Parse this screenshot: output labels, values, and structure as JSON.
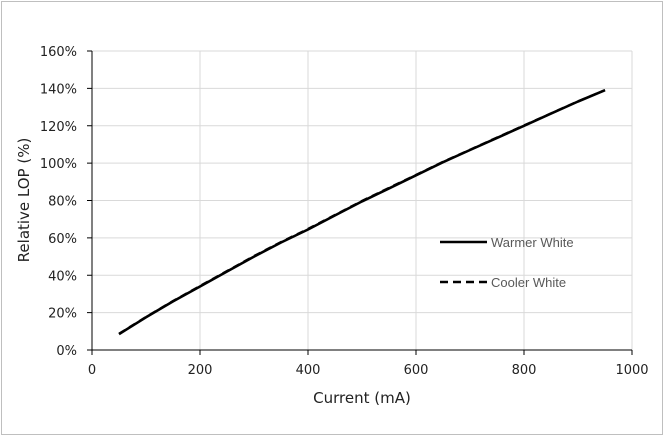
{
  "chart_data": {
    "type": "line",
    "title": "",
    "xlabel": "Current (mA)",
    "ylabel": "Relative LOP (%)",
    "xlim": [
      0,
      1000
    ],
    "ylim": [
      0,
      160
    ],
    "x_ticks": [
      0,
      200,
      400,
      600,
      800,
      1000
    ],
    "y_ticks": [
      0,
      20,
      40,
      60,
      80,
      100,
      120,
      140,
      160
    ],
    "x_tick_labels": [
      "0",
      "200",
      "400",
      "600",
      "800",
      "1000"
    ],
    "y_tick_labels": [
      "0%",
      "20%",
      "40%",
      "60%",
      "80%",
      "100%",
      "120%",
      "140%",
      "160%"
    ],
    "grid": true,
    "legend_position": "center-right",
    "x": [
      50,
      100,
      150,
      200,
      250,
      300,
      350,
      400,
      450,
      500,
      550,
      600,
      650,
      700,
      750,
      800,
      850,
      900,
      950
    ],
    "series": [
      {
        "name": "Warmer White",
        "style": "solid",
        "color": "#000000",
        "values": [
          8.5,
          17.5,
          26,
          34,
          42,
          50,
          57.5,
          64.5,
          72,
          79.5,
          86.5,
          93.5,
          100.5,
          107,
          113.5,
          120,
          126.5,
          133,
          139
        ]
      },
      {
        "name": "Cooler White",
        "style": "dashed",
        "color": "#000000",
        "values": [
          8.7,
          17.7,
          26.2,
          34.3,
          42.3,
          50.3,
          57.8,
          64.8,
          72.3,
          79.8,
          86.8,
          93.7,
          100.7,
          107.2,
          113.7,
          120.2,
          126.6,
          133.1,
          139.1
        ]
      }
    ]
  }
}
